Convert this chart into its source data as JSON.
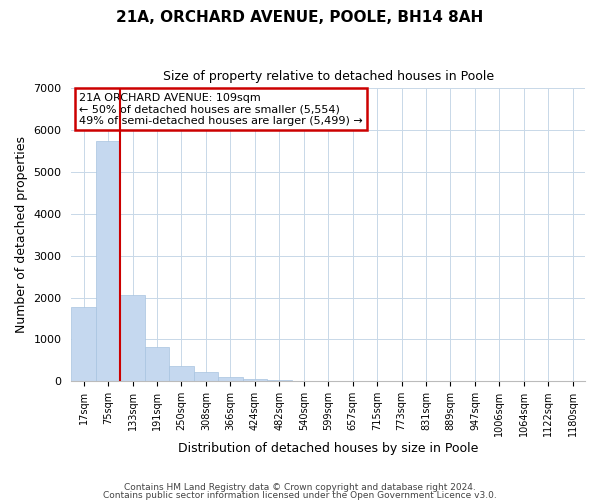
{
  "title": "21A, ORCHARD AVENUE, POOLE, BH14 8AH",
  "subtitle": "Size of property relative to detached houses in Poole",
  "xlabel": "Distribution of detached houses by size in Poole",
  "ylabel": "Number of detached properties",
  "bar_labels": [
    "17sqm",
    "75sqm",
    "133sqm",
    "191sqm",
    "250sqm",
    "308sqm",
    "366sqm",
    "424sqm",
    "482sqm",
    "540sqm",
    "599sqm",
    "657sqm",
    "715sqm",
    "773sqm",
    "831sqm",
    "889sqm",
    "947sqm",
    "1006sqm",
    "1064sqm",
    "1122sqm",
    "1180sqm"
  ],
  "bar_values": [
    1780,
    5740,
    2050,
    820,
    360,
    220,
    100,
    50,
    30,
    15,
    8,
    3,
    1,
    0,
    0,
    0,
    0,
    0,
    0,
    0,
    0
  ],
  "bar_color": "#c5d8ef",
  "bar_edge_color": "#a8c4e0",
  "ylim": [
    0,
    7000
  ],
  "yticks": [
    0,
    1000,
    2000,
    3000,
    4000,
    5000,
    6000,
    7000
  ],
  "vline_x": 1.5,
  "vline_color": "#cc0000",
  "annotation_title": "21A ORCHARD AVENUE: 109sqm",
  "annotation_line1": "← 50% of detached houses are smaller (5,554)",
  "annotation_line2": "49% of semi-detached houses are larger (5,499) →",
  "annotation_box_color": "#ffffff",
  "annotation_box_edge": "#cc0000",
  "footer1": "Contains HM Land Registry data © Crown copyright and database right 2024.",
  "footer2": "Contains public sector information licensed under the Open Government Licence v3.0.",
  "bg_color": "#ffffff",
  "grid_color": "#c8d8e8"
}
